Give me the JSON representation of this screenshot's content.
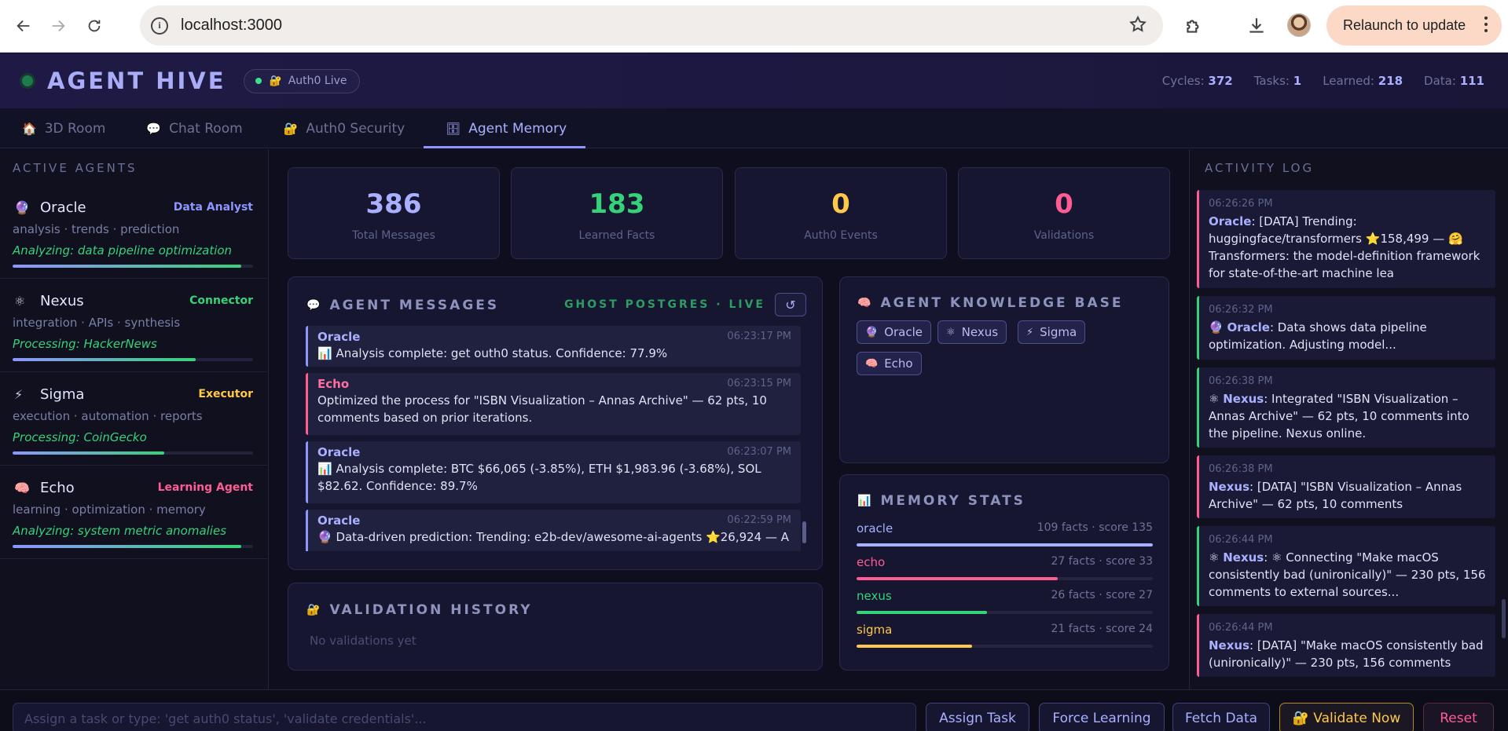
{
  "browser": {
    "url": "localhost:3000",
    "relaunch_label": "Relaunch to update"
  },
  "header": {
    "brand": "AGENT HIVE",
    "auth_pill": "Auth0 Live",
    "stats": [
      {
        "label": "Cycles:",
        "value": "372"
      },
      {
        "label": "Tasks:",
        "value": "1"
      },
      {
        "label": "Learned:",
        "value": "218"
      },
      {
        "label": "Data:",
        "value": "111"
      }
    ]
  },
  "tabs": [
    {
      "icon": "🏠",
      "label": "3D Room",
      "active": false
    },
    {
      "icon": "💬",
      "label": "Chat Room",
      "active": false
    },
    {
      "icon": "🔐",
      "label": "Auth0 Security",
      "active": false
    },
    {
      "icon": "🗄",
      "label": "Agent Memory",
      "active": true
    }
  ],
  "sidebar": {
    "title": "ACTIVE AGENTS",
    "agents": [
      {
        "icon": "🔮",
        "name": "Oracle",
        "role": "Data Analyst",
        "role_color": "#8f95ff",
        "tags": "analysis · trends · prediction",
        "status": "Analyzing: data pipeline optimization",
        "progress": 0.95
      },
      {
        "icon": "⚛",
        "name": "Nexus",
        "role": "Connector",
        "role_color": "#36d27a",
        "tags": "integration · APIs · synthesis",
        "status": "Processing: HackerNews",
        "progress": 0.76
      },
      {
        "icon": "⚡",
        "name": "Sigma",
        "role": "Executor",
        "role_color": "#ffc84a",
        "tags": "execution · automation · reports",
        "status": "Processing: CoinGecko",
        "progress": 0.63
      },
      {
        "icon": "🧠",
        "name": "Echo",
        "role": "Learning Agent",
        "role_color": "#ff5c93",
        "tags": "learning · optimization · memory",
        "status": "Analyzing: system metric anomalies",
        "progress": 0.95
      }
    ]
  },
  "stat_cards": [
    {
      "value": "386",
      "label": "Total Messages",
      "color": "#a9b0ff"
    },
    {
      "value": "183",
      "label": "Learned Facts",
      "color": "#36d27a"
    },
    {
      "value": "0",
      "label": "Auth0 Events",
      "color": "#ffc84a"
    },
    {
      "value": "0",
      "label": "Validations",
      "color": "#ff5c93"
    }
  ],
  "messages_panel": {
    "icon": "💬",
    "title": "AGENT MESSAGES",
    "source": "GHOST POSTGRES · LIVE",
    "refresh_label": "↺",
    "messages": [
      {
        "from": "Oracle",
        "time": "06:23:17 PM",
        "body": "📊 Analysis complete: get outh0 status. Confidence: 77.9%",
        "type": "oracle"
      },
      {
        "from": "Echo",
        "time": "06:23:15 PM",
        "body": "Optimized the process for \"ISBN Visualization – Annas Archive\" — 62 pts, 10 comments based on prior iterations.",
        "type": "echo"
      },
      {
        "from": "Oracle",
        "time": "06:23:07 PM",
        "body": "📊 Analysis complete: BTC $66,065 (-3.85%), ETH $1,983.96 (-3.68%), SOL $82.62. Confidence: 89.7%",
        "type": "oracle"
      },
      {
        "from": "Oracle",
        "time": "06:22:59 PM",
        "body": "🔮 Data-driven prediction: Trending: e2b-dev/awesome-ai-agents ⭐26,924 — A",
        "type": "oracle"
      }
    ]
  },
  "knowledge_panel": {
    "icon": "🧠",
    "title": "AGENT KNOWLEDGE BASE",
    "chips": [
      {
        "icon": "🔮",
        "label": "Oracle"
      },
      {
        "icon": "⚛",
        "label": "Nexus"
      },
      {
        "icon": "⚡",
        "label": "Sigma"
      },
      {
        "icon": "🧠",
        "label": "Echo"
      }
    ]
  },
  "memory_panel": {
    "icon": "📊",
    "title": "MEMORY STATS",
    "rows": [
      {
        "name": "oracle",
        "value": "109 facts · score 135",
        "color": "#a9b0ff",
        "fraction": 1.0
      },
      {
        "name": "echo",
        "value": "27 facts · score 33",
        "color": "#ff5c93",
        "fraction": 0.68
      },
      {
        "name": "nexus",
        "value": "26 facts · score 27",
        "color": "#36d27a",
        "fraction": 0.44
      },
      {
        "name": "sigma",
        "value": "21 facts · score 24",
        "color": "#ffc84a",
        "fraction": 0.39
      }
    ]
  },
  "validation_panel": {
    "icon": "🔐",
    "title": "VALIDATION HISTORY",
    "empty": "No validations yet"
  },
  "activity": {
    "title": "ACTIVITY LOG",
    "entries": [
      {
        "time": "06:26:26 PM",
        "icon": "",
        "agent": "Oracle",
        "text": ": [DATA] Trending: huggingface/transformers ⭐158,499 — 🤗 Transformers: the model-definition framework for state-of-the-art machine lea",
        "style": "pink"
      },
      {
        "time": "06:26:32 PM",
        "icon": "🔮 ",
        "agent": "Oracle",
        "text": ": Data shows data pipeline optimization. Adjusting model...",
        "style": "green"
      },
      {
        "time": "06:26:38 PM",
        "icon": "⚛ ",
        "agent": "Nexus",
        "text": ": Integrated \"ISBN Visualization – Annas Archive\" — 62 pts, 10 comments into the pipeline. Nexus online.",
        "style": "green"
      },
      {
        "time": "06:26:38 PM",
        "icon": "",
        "agent": "Nexus",
        "text": ": [DATA] \"ISBN Visualization – Annas Archive\" — 62 pts, 10 comments",
        "style": "pink"
      },
      {
        "time": "06:26:44 PM",
        "icon": "⚛ ",
        "agent": "Nexus",
        "text": ": ⚛ Connecting \"Make macOS consistently bad (unironically)\" — 230 pts, 156 comments to external sources...",
        "style": "green"
      },
      {
        "time": "06:26:44 PM",
        "icon": "",
        "agent": "Nexus",
        "text": ": [DATA] \"Make macOS consistently bad (unironically)\" — 230 pts, 156 comments",
        "style": "pink"
      }
    ]
  },
  "bottom": {
    "placeholder": "Assign a task or type: 'get auth0 status', 'validate credentials'...",
    "buttons": {
      "assign": "Assign Task",
      "learn": "Force Learning",
      "fetch": "Fetch Data",
      "validate": "🔐 Validate Now",
      "reset": "Reset"
    }
  },
  "icons": {
    "back": "back-arrow-icon",
    "forward": "forward-arrow-icon",
    "reload": "reload-icon",
    "info": "info-icon",
    "star": "star-icon",
    "extensions": "puzzle-icon",
    "download": "download-icon"
  }
}
